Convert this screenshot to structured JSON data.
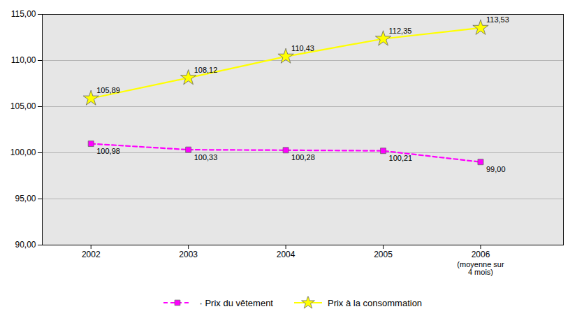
{
  "chart_data": {
    "type": "line",
    "x": [
      2002,
      2003,
      2004,
      2005,
      2006
    ],
    "series": [
      {
        "name": " · Prix du vêtement",
        "color": "#FF00FF",
        "marker": "square",
        "line_style": "dashed",
        "values": [
          100.98,
          100.33,
          100.28,
          100.21,
          99.0
        ],
        "value_labels": [
          "100,98",
          "100,33",
          "100,28",
          "100,21",
          "99,00"
        ]
      },
      {
        "name": "Prix à la consommation",
        "color": "#FFFF00",
        "marker": "star",
        "line_style": "solid",
        "values": [
          105.89,
          108.12,
          110.43,
          112.35,
          113.53
        ],
        "value_labels": [
          "105,89",
          "108,12",
          "110,43",
          "112,35",
          "113,53"
        ]
      }
    ],
    "xlim": [
      2001.5,
      2006.85
    ],
    "xticks": [
      2002,
      2003,
      2004,
      2005,
      2006
    ],
    "ylim": [
      90.0,
      115.0
    ],
    "yticks": [
      {
        "value": 90.0,
        "label": "90,00"
      },
      {
        "value": 95.0,
        "label": "95,00"
      },
      {
        "value": 100.0,
        "label": "100,00"
      },
      {
        "value": 105.0,
        "label": "105,00"
      },
      {
        "value": 110.0,
        "label": "110,00"
      },
      {
        "value": 115.0,
        "label": "115,00"
      }
    ],
    "annotations": [
      {
        "text": "(moyenne sur\n4 mois)",
        "x": 2006
      }
    ],
    "grid": "y",
    "data_labels": true,
    "legend": "bottom"
  }
}
